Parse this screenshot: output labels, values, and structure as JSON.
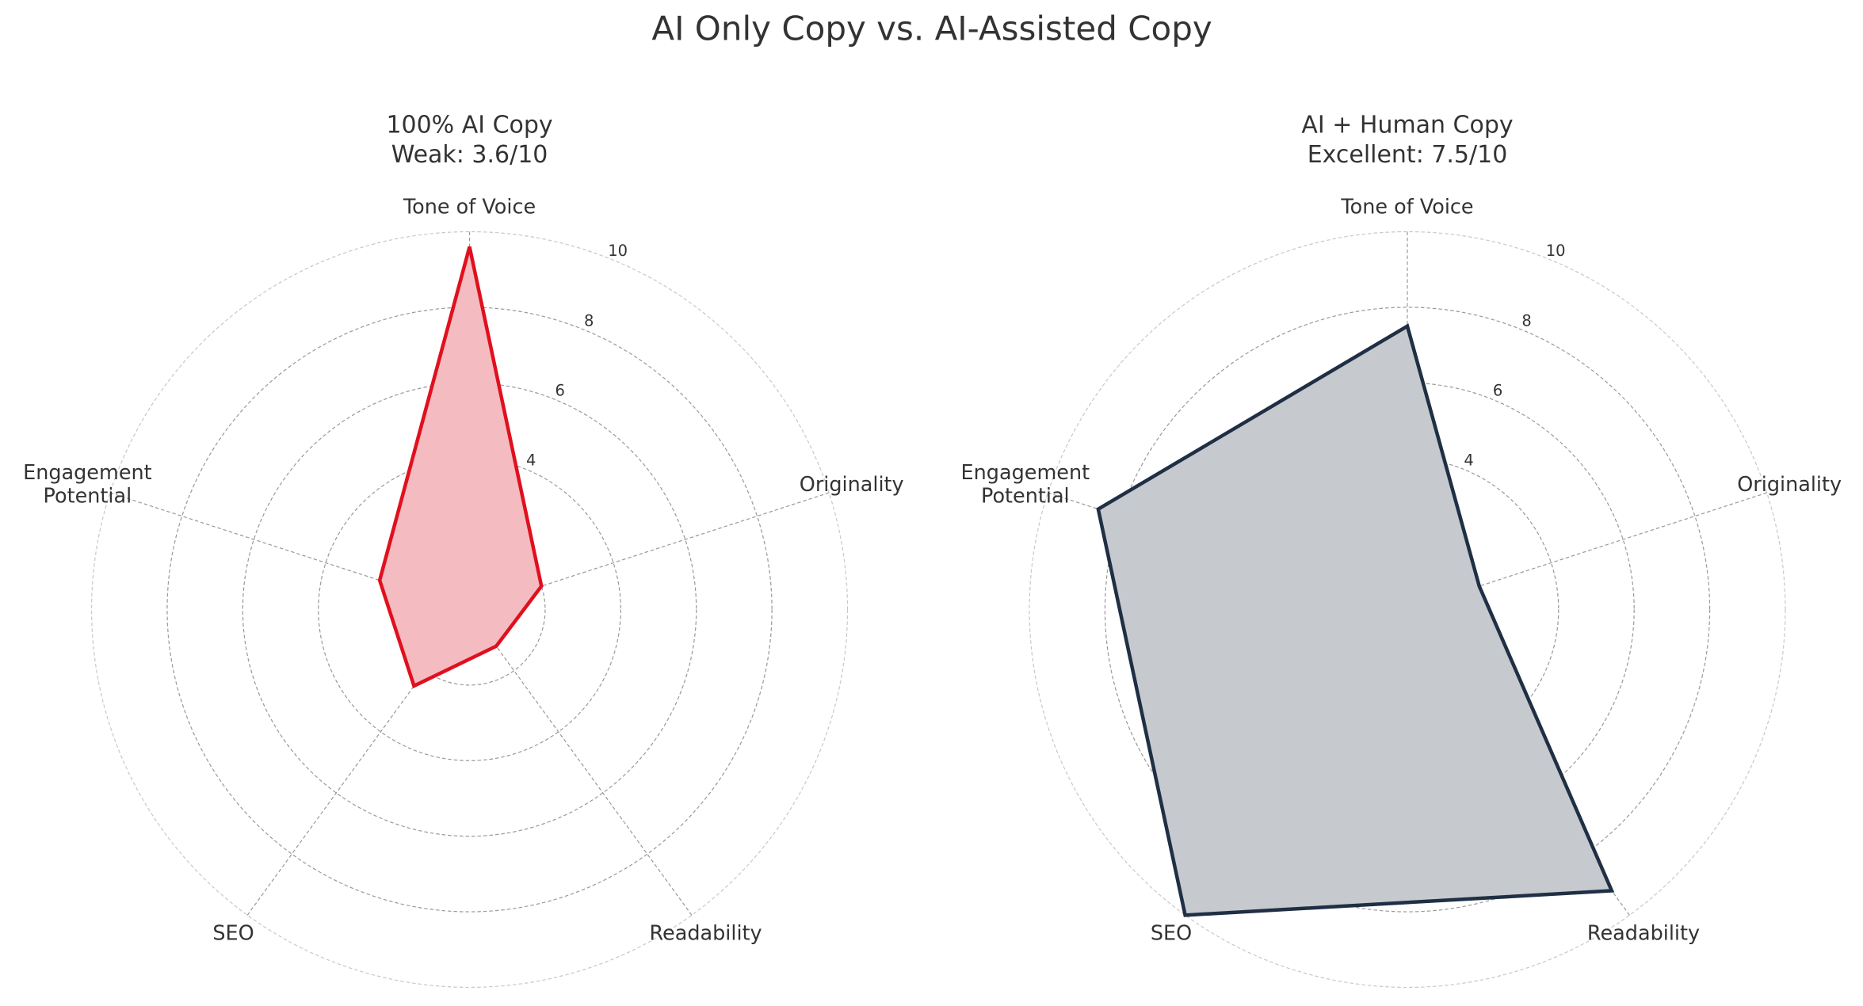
{
  "title": "AI Only Copy vs. AI-Assisted Copy",
  "chart_data": [
    {
      "type": "radar",
      "title": "100% AI Copy",
      "subtitle": "Weak: 3.6/10",
      "categories": [
        "Tone of Voice",
        "Originality",
        "Readability",
        "SEO",
        "Engagement\nPotential"
      ],
      "series": [
        {
          "name": "100% AI Copy",
          "color": "#e0101e",
          "fill": "#f4bcc0",
          "values": [
            9.6,
            2,
            1.2,
            2.5,
            2.5
          ]
        }
      ],
      "rlim": [
        0,
        10
      ],
      "rticks": [
        2,
        4,
        6,
        8,
        10
      ],
      "grid": true
    },
    {
      "type": "radar",
      "title": "AI + Human Copy",
      "subtitle": "Excellent: 7.5/10",
      "categories": [
        "Tone of Voice",
        "Originality",
        "Readability",
        "SEO",
        "Engagement\nPotential"
      ],
      "series": [
        {
          "name": "AI + Human Copy",
          "color": "#1f2f44",
          "fill": "#c6c9ce",
          "values": [
            7.5,
            2,
            9.2,
            10,
            8.6
          ]
        }
      ],
      "rlim": [
        0,
        10
      ],
      "rticks": [
        2,
        4,
        6,
        8,
        10
      ],
      "grid": true
    }
  ]
}
